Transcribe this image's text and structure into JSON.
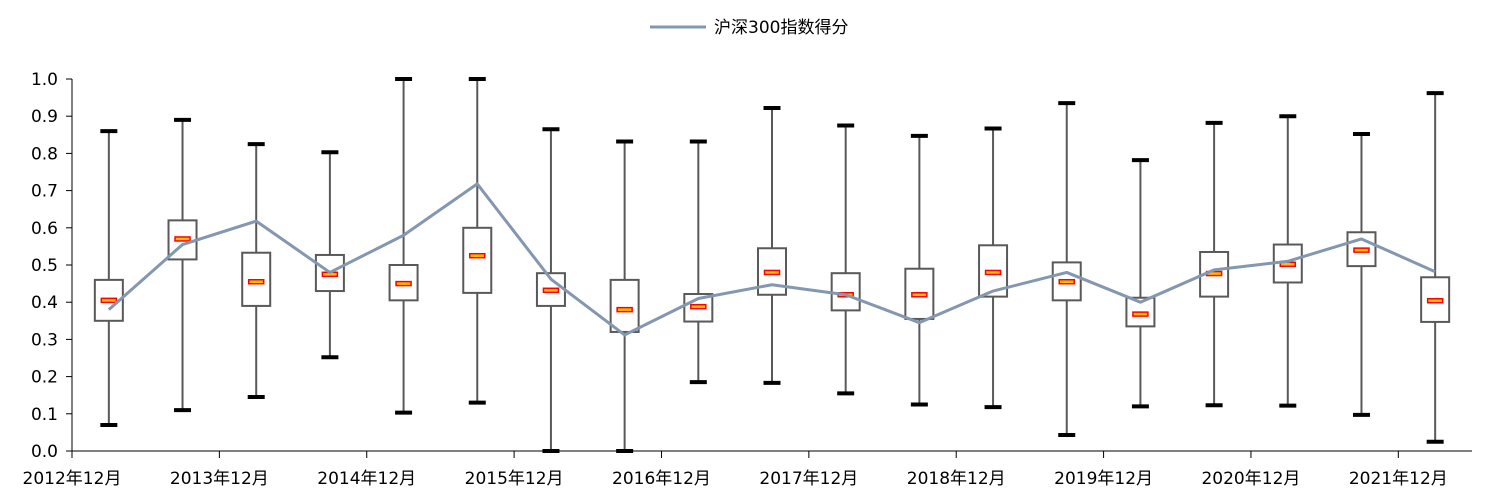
{
  "chart_data": {
    "type": "boxplot",
    "legend": {
      "label": "沪深300指数得分",
      "position": "top-center"
    },
    "colors": {
      "line": "#8497B0",
      "box": "#595959",
      "whisker": "#595959",
      "cap": "#000000",
      "median": "#FF0000",
      "median_fill": "#FFC000"
    },
    "ylim": [
      0,
      1.0
    ],
    "yticks": [
      "0.0",
      "0.1",
      "0.2",
      "0.3",
      "0.4",
      "0.5",
      "0.6",
      "0.7",
      "0.8",
      "0.9",
      "1.0"
    ],
    "xtick_labels": [
      "2012年12月",
      "2013年12月",
      "2014年12月",
      "2015年12月",
      "2016年12月",
      "2017年12月",
      "2018年12月",
      "2019年12月",
      "2020年12月",
      "2021年12月"
    ],
    "boxes": [
      {
        "min": 0.07,
        "q1": 0.35,
        "median": 0.405,
        "q3": 0.46,
        "max": 0.86
      },
      {
        "min": 0.11,
        "q1": 0.515,
        "median": 0.57,
        "q3": 0.62,
        "max": 0.89
      },
      {
        "min": 0.145,
        "q1": 0.39,
        "median": 0.455,
        "q3": 0.533,
        "max": 0.825
      },
      {
        "min": 0.252,
        "q1": 0.43,
        "median": 0.475,
        "q3": 0.527,
        "max": 0.803
      },
      {
        "min": 0.103,
        "q1": 0.405,
        "median": 0.45,
        "q3": 0.5,
        "max": 1.0
      },
      {
        "min": 0.13,
        "q1": 0.425,
        "median": 0.525,
        "q3": 0.6,
        "max": 1.0
      },
      {
        "min": 0.0,
        "q1": 0.39,
        "median": 0.432,
        "q3": 0.478,
        "max": 0.865
      },
      {
        "min": 0.0,
        "q1": 0.32,
        "median": 0.38,
        "q3": 0.46,
        "max": 0.832
      },
      {
        "min": 0.185,
        "q1": 0.348,
        "median": 0.388,
        "q3": 0.422,
        "max": 0.832
      },
      {
        "min": 0.183,
        "q1": 0.42,
        "median": 0.48,
        "q3": 0.545,
        "max": 0.922
      },
      {
        "min": 0.155,
        "q1": 0.378,
        "median": 0.42,
        "q3": 0.478,
        "max": 0.875
      },
      {
        "min": 0.125,
        "q1": 0.355,
        "median": 0.42,
        "q3": 0.49,
        "max": 0.847
      },
      {
        "min": 0.118,
        "q1": 0.415,
        "median": 0.48,
        "q3": 0.553,
        "max": 0.867
      },
      {
        "min": 0.043,
        "q1": 0.405,
        "median": 0.455,
        "q3": 0.507,
        "max": 0.935
      },
      {
        "min": 0.12,
        "q1": 0.335,
        "median": 0.368,
        "q3": 0.412,
        "max": 0.782
      },
      {
        "min": 0.123,
        "q1": 0.415,
        "median": 0.477,
        "q3": 0.535,
        "max": 0.882
      },
      {
        "min": 0.122,
        "q1": 0.453,
        "median": 0.502,
        "q3": 0.555,
        "max": 0.9
      },
      {
        "min": 0.097,
        "q1": 0.497,
        "median": 0.54,
        "q3": 0.588,
        "max": 0.852
      },
      {
        "min": 0.025,
        "q1": 0.347,
        "median": 0.404,
        "q3": 0.467,
        "max": 0.962
      }
    ],
    "series": [
      {
        "name": "沪深300指数得分",
        "values": [
          0.38,
          0.555,
          0.618,
          0.48,
          0.58,
          0.718,
          0.462,
          0.312,
          0.41,
          0.447,
          0.42,
          0.345,
          0.43,
          0.48,
          0.4,
          0.487,
          0.51,
          0.57,
          0.482
        ]
      }
    ]
  }
}
